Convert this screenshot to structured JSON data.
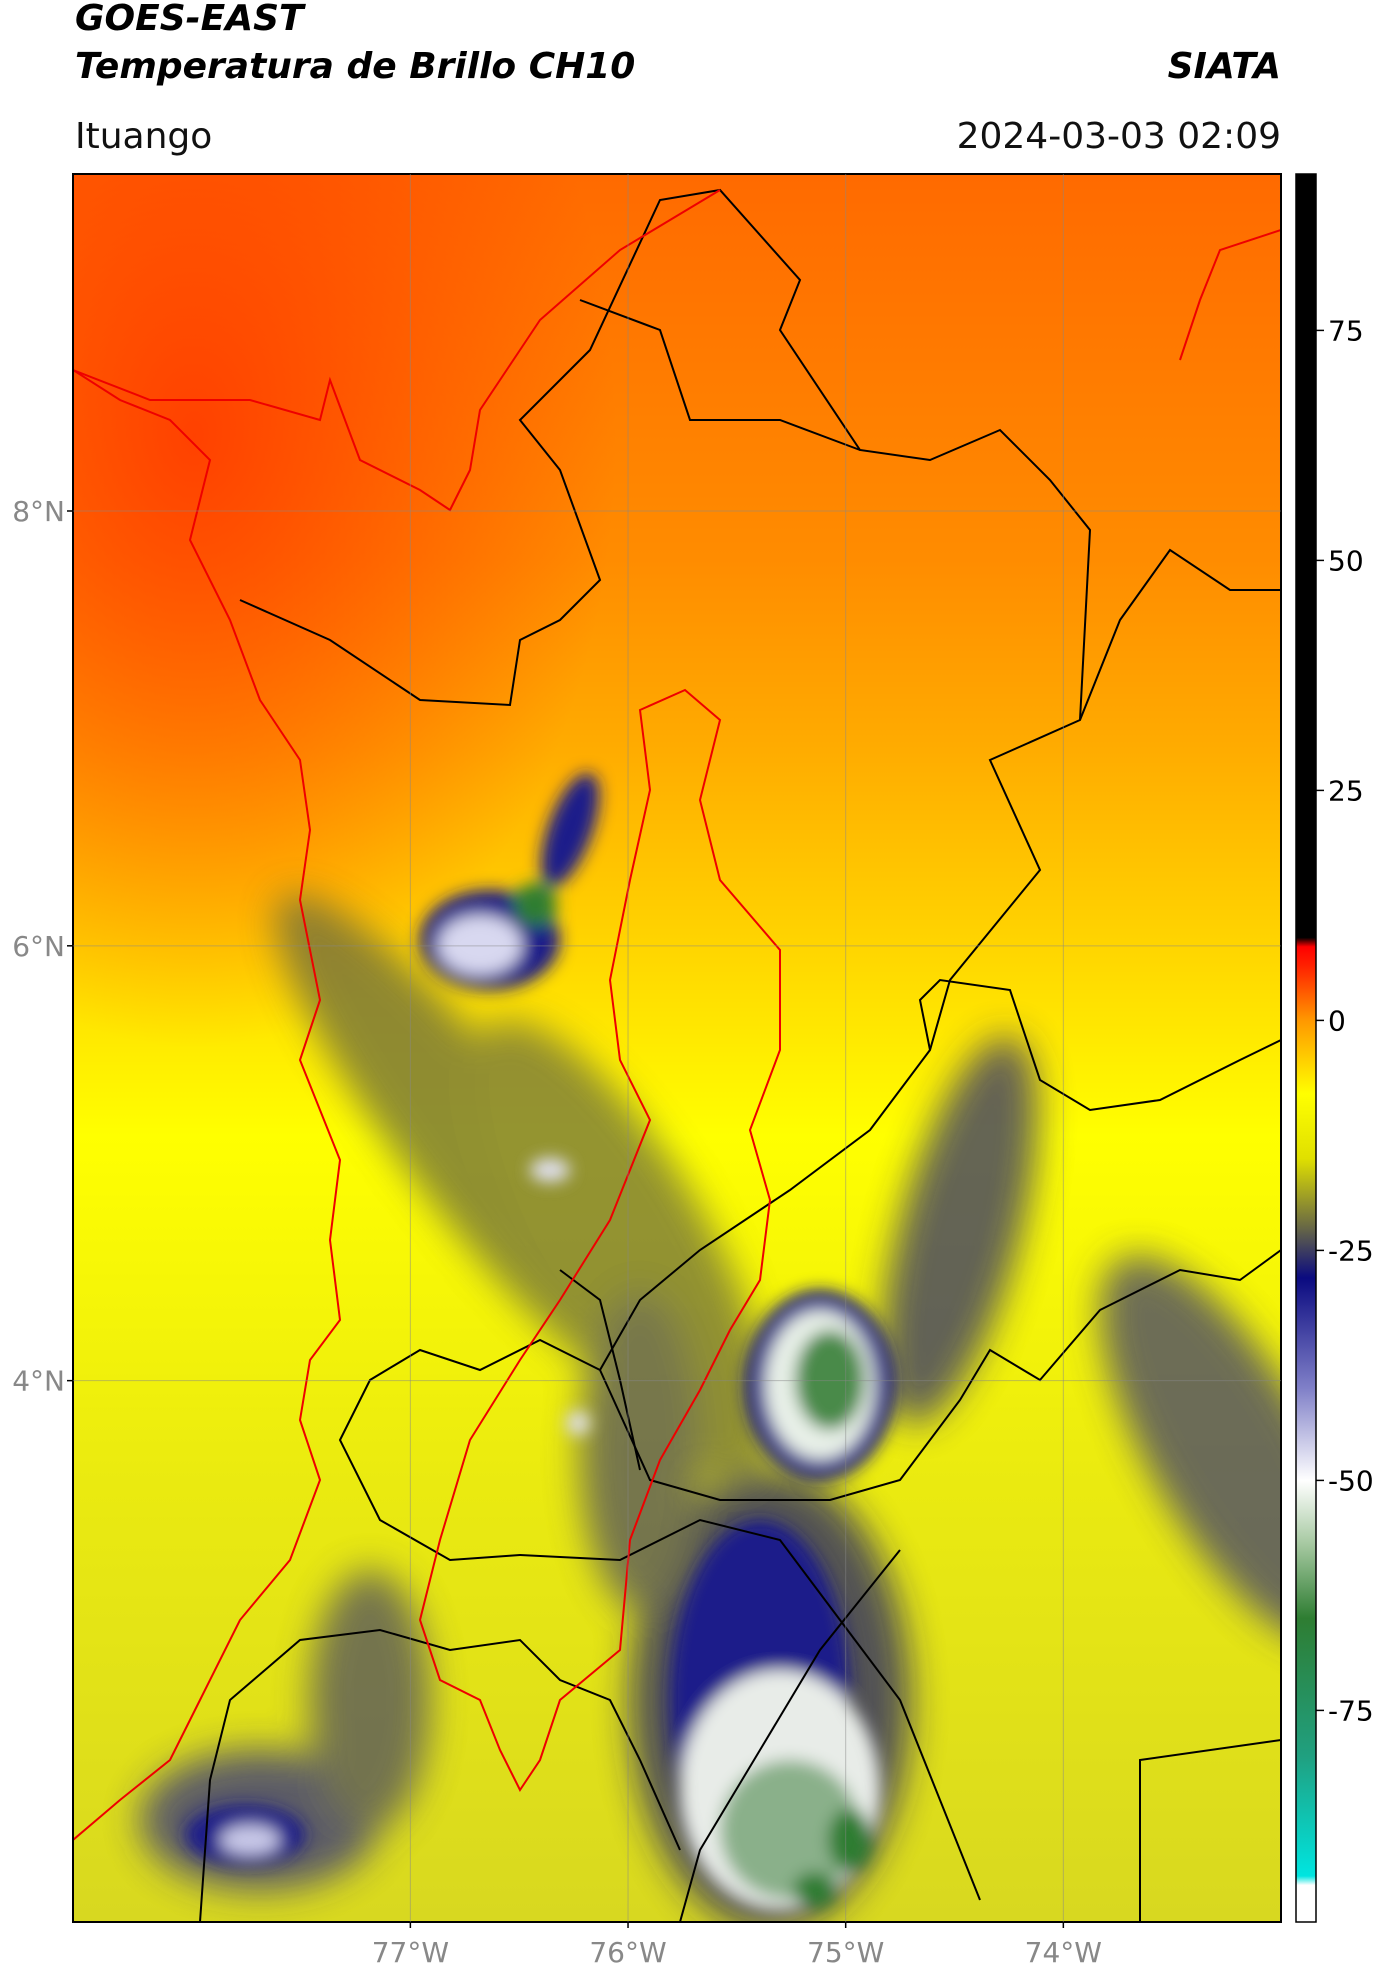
{
  "header": {
    "title_line1": "GOES-EAST",
    "title_line2": "Temperatura de Brillo CH10",
    "organization": "SIATA",
    "location": "Ituango",
    "datetime": "2024-03-03 02:09"
  },
  "map": {
    "lon_range": [
      -78.55,
      -73.0
    ],
    "lat_range": [
      1.51,
      9.55
    ],
    "lat_ticks": [
      {
        "value": 8,
        "label": "8°N"
      },
      {
        "value": 6,
        "label": "6°N"
      },
      {
        "value": 4,
        "label": "4°N"
      }
    ],
    "lon_ticks": [
      {
        "value": -77,
        "label": "77°W"
      },
      {
        "value": -76,
        "label": "76°W"
      },
      {
        "value": -75,
        "label": "75°W"
      },
      {
        "value": -74,
        "label": "74°W"
      }
    ],
    "grid": true
  },
  "colorbar": {
    "range": [
      -98,
      92
    ],
    "ticks": [
      75,
      50,
      25,
      0,
      -25,
      -50,
      -75
    ],
    "stops": [
      {
        "value": -98,
        "color": "#ffffff"
      },
      {
        "value": -94,
        "color": "#ffffff"
      },
      {
        "value": -93,
        "color": "#00e5e0"
      },
      {
        "value": -80,
        "color": "#20a080"
      },
      {
        "value": -65,
        "color": "#2e7d32"
      },
      {
        "value": -57,
        "color": "#a5c8a0"
      },
      {
        "value": -50,
        "color": "#ffffff"
      },
      {
        "value": -40,
        "color": "#8080c8"
      },
      {
        "value": -28,
        "color": "#0a0a80"
      },
      {
        "value": -22,
        "color": "#707040"
      },
      {
        "value": -15,
        "color": "#e0e000"
      },
      {
        "value": -8,
        "color": "#ffff00"
      },
      {
        "value": 0,
        "color": "#ff9800"
      },
      {
        "value": 6,
        "color": "#ff2000"
      },
      {
        "value": 8,
        "color": "#ff0000"
      },
      {
        "value": 9,
        "color": "#000000"
      },
      {
        "value": 92,
        "color": "#000000"
      }
    ]
  }
}
